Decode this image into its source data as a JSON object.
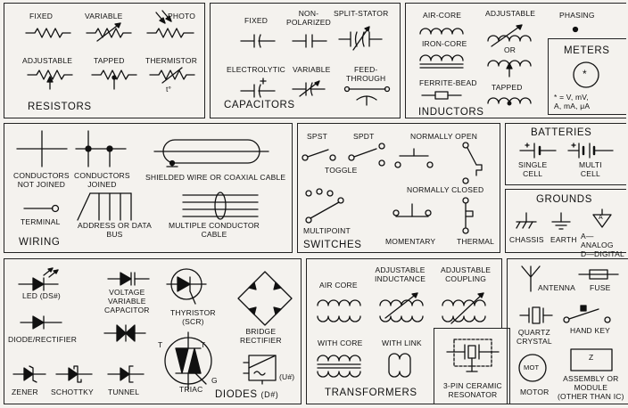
{
  "resistors": {
    "title": "RESISTORS",
    "fixed": "FIXED",
    "variable": "VARIABLE",
    "photo": "PHOTO",
    "adjustable": "ADJUSTABLE",
    "tapped": "TAPPED",
    "thermistor": "THERMISTOR",
    "t_symbol": "t°"
  },
  "capacitors": {
    "title": "CAPACITORS",
    "fixed": "FIXED",
    "non_polarized": "NON-\nPOLARIZED",
    "split_stator": "SPLIT-STATOR",
    "electrolytic": "ELECTROLYTIC",
    "variable": "VARIABLE",
    "feed_through": "FEED-\nTHROUGH"
  },
  "inductors": {
    "title": "INDUCTORS",
    "air_core": "AIR-CORE",
    "iron_core": "IRON-CORE",
    "ferrite_bead": "FERRITE-BEAD",
    "adjustable": "ADJUSTABLE",
    "or": "OR",
    "tapped": "TAPPED",
    "phasing": "PHASING"
  },
  "meters": {
    "title": "METERS",
    "symbol": "*",
    "note": "* = V, mV,\nA, mA, μA"
  },
  "wiring": {
    "title": "WIRING",
    "not_joined": "CONDUCTORS\nNOT JOINED",
    "joined": "CONDUCTORS\nJOINED",
    "shielded": "SHIELDED WIRE OR COAXIAL CABLE",
    "terminal": "TERMINAL",
    "address_bus": "ADDRESS OR DATA\nBUS",
    "multi_cable": "MULTIPLE CONDUCTOR\nCABLE"
  },
  "switches": {
    "title": "SWITCHES",
    "spst": "SPST",
    "spdt": "SPDT",
    "toggle": "TOGGLE",
    "normally_open": "NORMALLY OPEN",
    "normally_closed": "NORMALLY CLOSED",
    "multipoint": "MULTIPOINT",
    "momentary": "MOMENTARY",
    "thermal": "THERMAL"
  },
  "batteries": {
    "title": "BATTERIES",
    "single": "SINGLE\nCELL",
    "multi": "MULTI\nCELL"
  },
  "grounds": {
    "title": "GROUNDS",
    "chassis": "CHASSIS",
    "earth": "EARTH",
    "analog_digital": "A—ANALOG\nD—DIGITAL",
    "a_mark": "A"
  },
  "diodes": {
    "title": "DIODES",
    "title_suffix": "(D#)",
    "led": "LED",
    "led_suffix": "(DS#)",
    "varicap": "VOLTAGE\nVARIABLE\nCAPACITOR",
    "thyristor": "THYRISTOR\n(SCR)",
    "bridge": "BRIDGE\nRECTIFIER",
    "rectifier": "DIODE/RECTIFIER",
    "zener": "ZENER",
    "schottky": "SCHOTTKY",
    "tunnel": "TUNNEL",
    "triac": "TRIAC",
    "t1": "T",
    "t2": "T",
    "g": "G",
    "u_label": "(U#)"
  },
  "transformers": {
    "title": "TRANSFORMERS",
    "air_core": "AIR CORE",
    "adj_inductance": "ADJUSTABLE\nINDUCTANCE",
    "adj_coupling": "ADJUSTABLE\nCOUPLING",
    "with_core": "WITH CORE",
    "with_link": "WITH LINK",
    "resonator": "3-PIN CERAMIC\nRESONATOR"
  },
  "misc": {
    "antenna": "ANTENNA",
    "fuse": "FUSE",
    "quartz": "QUARTZ\nCRYSTAL",
    "hand_key": "HAND KEY",
    "motor": "MOTOR",
    "motor_symbol": "MOT",
    "assembly": "ASSEMBLY OR\nMODULE\n(OTHER THAN IC)",
    "z": "Z"
  }
}
